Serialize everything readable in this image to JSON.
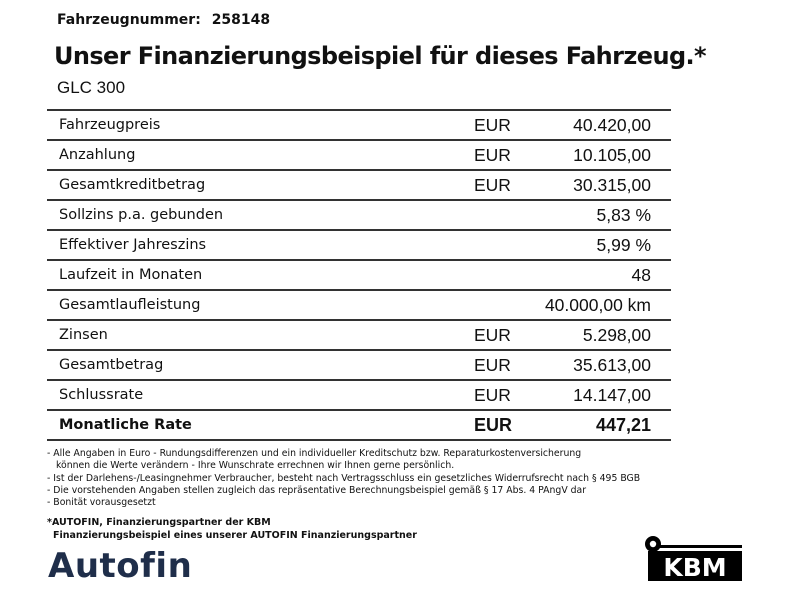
{
  "header": {
    "vehicle_number_label": "Fahrzeugnummer:",
    "vehicle_number": "258148",
    "title": "Unser Finanzierungsbeispiel für dieses Fahrzeug.*",
    "model": "GLC 300"
  },
  "rows": [
    {
      "label": "Fahrzeugpreis",
      "currency": "EUR",
      "value": "40.420,00"
    },
    {
      "label": "Anzahlung",
      "currency": "EUR",
      "value": "10.105,00"
    },
    {
      "label": "Gesamtkreditbetrag",
      "currency": "EUR",
      "value": "30.315,00"
    },
    {
      "label": "Sollzins p.a. gebunden",
      "currency": "",
      "value": "5,83 %"
    },
    {
      "label": "Effektiver Jahreszins",
      "currency": "",
      "value": "5,99 %"
    },
    {
      "label": "Laufzeit in Monaten",
      "currency": "",
      "value": "48"
    },
    {
      "label": "Gesamtlaufleistung",
      "currency": "",
      "value": "40.000,00 km"
    },
    {
      "label": "Zinsen",
      "currency": "EUR",
      "value": "5.298,00"
    },
    {
      "label": "Gesamtbetrag",
      "currency": "EUR",
      "value": "35.613,00"
    },
    {
      "label": "Schlussrate",
      "currency": "EUR",
      "value": "14.147,00"
    },
    {
      "label": "Monatliche Rate",
      "currency": "EUR",
      "value": "447,21"
    }
  ],
  "notes": {
    "line1": "- Alle Angaben in Euro - Rundungsdifferenzen und ein individueller Kreditschutz bzw. Reparaturkostenversicherung",
    "line2": "können die Werte verändern - Ihre Wunschrate errechnen wir Ihnen gerne persönlich.",
    "line3": "- Ist der Darlehens-/Leasingnehmer Verbraucher, besteht nach Vertragsschluss ein gesetzliches Widerrufsrecht nach § 495 BGB",
    "line4": "- Die vorstehenden Angaben stellen zugleich das repräsentative Berechnungsbeispiel gemäß § 17 Abs. 4 PAngV dar",
    "line5": "- Bonität vorausgesetzt"
  },
  "partner": {
    "line1": "*AUTOFIN, Finanzierungspartner der KBM",
    "line2": "Finanzierungsbeispiel eines unserer AUTOFIN Finanzierungspartner"
  },
  "logos": {
    "autofin": "Autofin",
    "kbm": "KBM"
  },
  "colors": {
    "autofin_text": "#1f2e4a",
    "kbm": "#000000"
  }
}
